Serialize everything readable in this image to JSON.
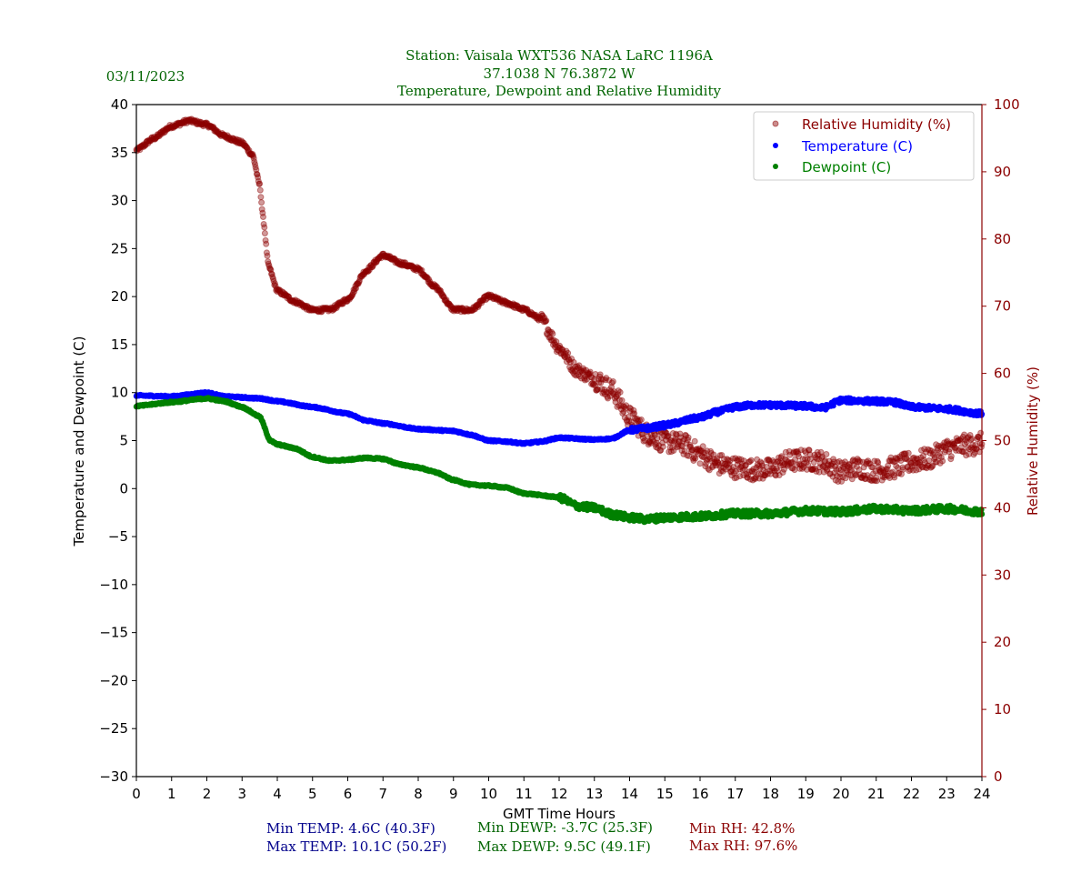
{
  "chart_data": {
    "type": "scatter",
    "date": "03/11/2023",
    "title_lines": [
      "Station:  Vaisala WXT536  NASA LaRC 1196A",
      "37.1038 N 76.3872 W",
      "Temperature, Dewpoint and Relative Humidity"
    ],
    "xlabel": "GMT Time Hours",
    "ylabel_left": "Temperature and Dewpoint (C)",
    "ylabel_right": "Relative Humidity (%)",
    "xlim": [
      0,
      24
    ],
    "ylim_left": [
      -30,
      40
    ],
    "ylim_right": [
      0,
      100
    ],
    "x_ticks": [
      "0",
      "1",
      "2",
      "3",
      "4",
      "5",
      "6",
      "7",
      "8",
      "9",
      "10",
      "11",
      "12",
      "13",
      "14",
      "15",
      "16",
      "17",
      "18",
      "19",
      "20",
      "21",
      "22",
      "23",
      "24"
    ],
    "y_ticks_left": [
      "−30",
      "−25",
      "−20",
      "−15",
      "−10",
      "−5",
      "0",
      "5",
      "10",
      "15",
      "20",
      "25",
      "30",
      "35",
      "40"
    ],
    "y_ticks_right": [
      "0",
      "10",
      "20",
      "30",
      "40",
      "50",
      "60",
      "70",
      "80",
      "90",
      "100"
    ],
    "grid": false,
    "legend_position": "top-right",
    "legend": [
      {
        "label": "Relative Humidity (%)",
        "color": "#8b0000"
      },
      {
        "label": "Temperature (C)",
        "color": "#0000ff"
      },
      {
        "label": "Dewpoint (C)",
        "color": "#008000"
      }
    ],
    "colors": {
      "title": "#006400",
      "rh": "#8b0000",
      "temp": "#0000ff",
      "dewp": "#008000",
      "stat_temp": "#00008b",
      "stat_dewp": "#006400",
      "stat_rh": "#8b0000"
    },
    "series": [
      {
        "name": "Relative Humidity (%)",
        "axis": "right",
        "x": [
          0,
          0.5,
          1,
          1.5,
          2,
          2.5,
          3,
          3.3,
          3.5,
          3.6,
          3.75,
          4,
          4.5,
          5,
          5.5,
          6,
          6.5,
          7,
          7.5,
          8,
          8.5,
          9,
          9.5,
          10,
          10.5,
          11,
          11.5,
          12,
          12.5,
          13,
          13.5,
          14,
          14.5,
          15,
          15.5,
          16,
          16.5,
          17,
          17.5,
          18,
          18.5,
          19,
          19.5,
          20,
          20.5,
          21,
          21.5,
          22,
          22.5,
          23,
          23.5,
          24
        ],
        "values": [
          93.2,
          95.0,
          96.8,
          97.6,
          97.0,
          95.3,
          94.3,
          92.5,
          88.0,
          83.0,
          76.0,
          72.3,
          70.7,
          69.4,
          69.5,
          71.0,
          75.2,
          77.6,
          76.4,
          75.5,
          72.8,
          69.5,
          69.4,
          71.5,
          70.5,
          69.5,
          68.0,
          63.8,
          60.5,
          59.2,
          57.5,
          53.5,
          51.0,
          49.8,
          49.5,
          48.0,
          46.5,
          46.0,
          45.7,
          45.7,
          46.9,
          47.2,
          46.8,
          45.3,
          46.0,
          45.5,
          46.0,
          46.8,
          47.3,
          48.7,
          49.3,
          49.6
        ]
      },
      {
        "name": "Temperature (C)",
        "axis": "left",
        "x": [
          0,
          1,
          2,
          2.5,
          3.5,
          4,
          5,
          6,
          6.5,
          7,
          8,
          9,
          9.5,
          10,
          10.5,
          11,
          11.5,
          12,
          13,
          13.5,
          14,
          14.5,
          15,
          16,
          16.5,
          17,
          17.5,
          18,
          19,
          19.5,
          20,
          21,
          21.5,
          22,
          23,
          24
        ],
        "values": [
          9.7,
          9.6,
          10.0,
          9.6,
          9.4,
          9.1,
          8.5,
          7.8,
          7.1,
          6.8,
          6.2,
          6.0,
          5.6,
          5.0,
          4.9,
          4.7,
          4.9,
          5.3,
          5.1,
          5.2,
          6.1,
          6.3,
          6.6,
          7.4,
          8.0,
          8.5,
          8.7,
          8.7,
          8.6,
          8.4,
          9.2,
          9.1,
          9.0,
          8.5,
          8.3,
          7.8
        ]
      },
      {
        "name": "Dewpoint (C)",
        "axis": "left",
        "x": [
          0,
          1,
          2,
          2.5,
          3,
          3.5,
          3.8,
          4,
          4.5,
          5,
          5.5,
          6,
          6.5,
          7,
          7.5,
          8,
          8.5,
          9,
          9.5,
          10,
          10.5,
          11,
          12,
          12.5,
          13,
          13.5,
          14,
          14.5,
          15,
          16,
          17,
          18,
          19,
          20,
          21,
          22,
          23,
          24
        ],
        "values": [
          8.6,
          9.0,
          9.4,
          9.1,
          8.5,
          7.5,
          5.0,
          4.6,
          4.2,
          3.3,
          2.9,
          3.0,
          3.2,
          3.1,
          2.5,
          2.2,
          1.7,
          0.9,
          0.4,
          0.3,
          0.1,
          -0.5,
          -0.9,
          -1.8,
          -2.0,
          -2.7,
          -3.0,
          -3.2,
          -3.0,
          -2.9,
          -2.6,
          -2.6,
          -2.3,
          -2.4,
          -2.1,
          -2.3,
          -2.1,
          -2.4
        ]
      }
    ],
    "stats": {
      "min_temp": "Min TEMP: 4.6C (40.3F)",
      "max_temp": "Max TEMP: 10.1C (50.2F)",
      "min_dewp": "Min DEWP: -3.7C (25.3F)",
      "max_dewp": "Max DEWP: 9.5C (49.1F)",
      "min_rh": "Min RH: 42.8%",
      "max_rh": "Max RH: 97.6%"
    }
  }
}
